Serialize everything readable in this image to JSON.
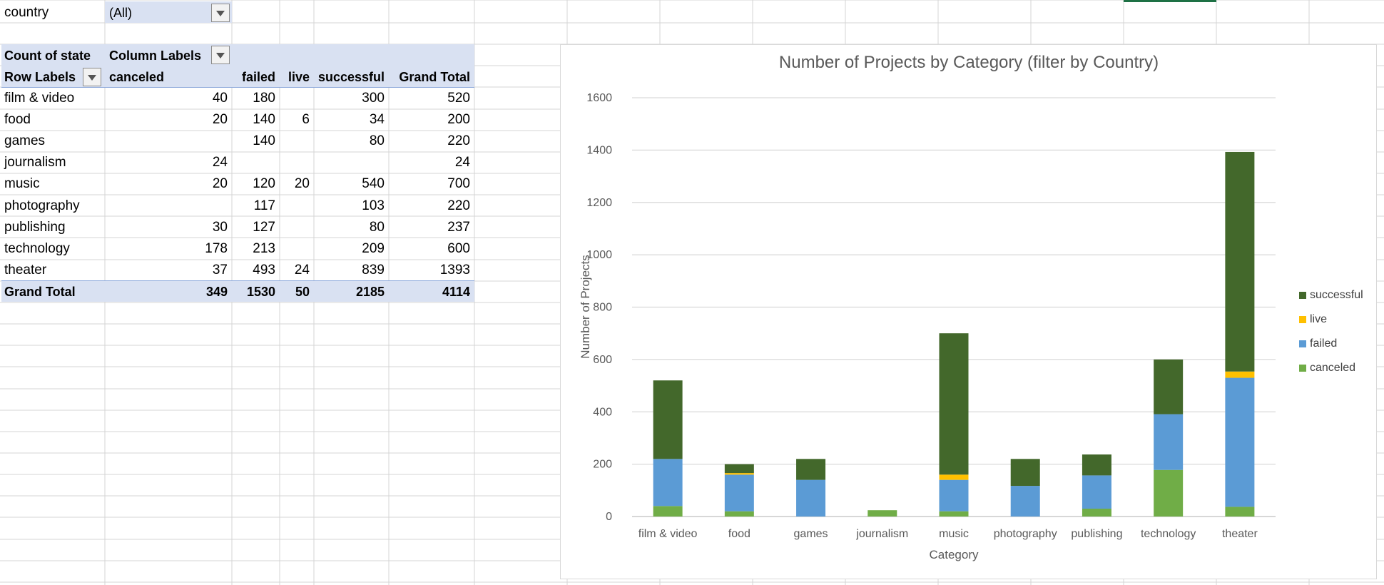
{
  "filter": {
    "field": "country",
    "value": "(All)"
  },
  "pivot": {
    "value_label": "Count of state",
    "column_labels": "Column Labels",
    "row_labels": "Row Labels",
    "columns": [
      "canceled",
      "failed",
      "live",
      "successful",
      "Grand Total"
    ],
    "rows": [
      {
        "label": "film & video",
        "canceled": "40",
        "failed": "180",
        "live": "",
        "successful": "300",
        "total": "520"
      },
      {
        "label": "food",
        "canceled": "20",
        "failed": "140",
        "live": "6",
        "successful": "34",
        "total": "200"
      },
      {
        "label": "games",
        "canceled": "",
        "failed": "140",
        "live": "",
        "successful": "80",
        "total": "220"
      },
      {
        "label": "journalism",
        "canceled": "24",
        "failed": "",
        "live": "",
        "successful": "",
        "total": "24"
      },
      {
        "label": "music",
        "canceled": "20",
        "failed": "120",
        "live": "20",
        "successful": "540",
        "total": "700"
      },
      {
        "label": "photography",
        "canceled": "",
        "failed": "117",
        "live": "",
        "successful": "103",
        "total": "220"
      },
      {
        "label": "publishing",
        "canceled": "30",
        "failed": "127",
        "live": "",
        "successful": "80",
        "total": "237"
      },
      {
        "label": "technology",
        "canceled": "178",
        "failed": "213",
        "live": "",
        "successful": "209",
        "total": "600"
      },
      {
        "label": "theater",
        "canceled": "37",
        "failed": "493",
        "live": "24",
        "successful": "839",
        "total": "1393"
      }
    ],
    "grand_total": {
      "label": "Grand Total",
      "canceled": "349",
      "failed": "1530",
      "live": "50",
      "successful": "2185",
      "total": "4114"
    }
  },
  "chart_data": {
    "type": "bar",
    "stacked": true,
    "title": "Number of Projects by Category (filter by Country)",
    "xlabel": "Category",
    "ylabel": "Number of Projects",
    "ylim": [
      0,
      1600
    ],
    "yticks": [
      0,
      200,
      400,
      600,
      800,
      1000,
      1200,
      1400,
      1600
    ],
    "grid": true,
    "legend_position": "right",
    "categories": [
      "film & video",
      "food",
      "games",
      "journalism",
      "music",
      "photography",
      "publishing",
      "technology",
      "theater"
    ],
    "series": [
      {
        "name": "canceled",
        "color": "#70ad47",
        "values": [
          40,
          20,
          0,
          24,
          20,
          0,
          30,
          178,
          37
        ]
      },
      {
        "name": "failed",
        "color": "#5b9bd5",
        "values": [
          180,
          140,
          140,
          0,
          120,
          117,
          127,
          213,
          493
        ]
      },
      {
        "name": "live",
        "color": "#ffc000",
        "values": [
          0,
          6,
          0,
          0,
          20,
          0,
          0,
          0,
          24
        ]
      },
      {
        "name": "successful",
        "color": "#43682b",
        "values": [
          300,
          34,
          80,
          0,
          540,
          103,
          80,
          209,
          839
        ]
      }
    ]
  }
}
